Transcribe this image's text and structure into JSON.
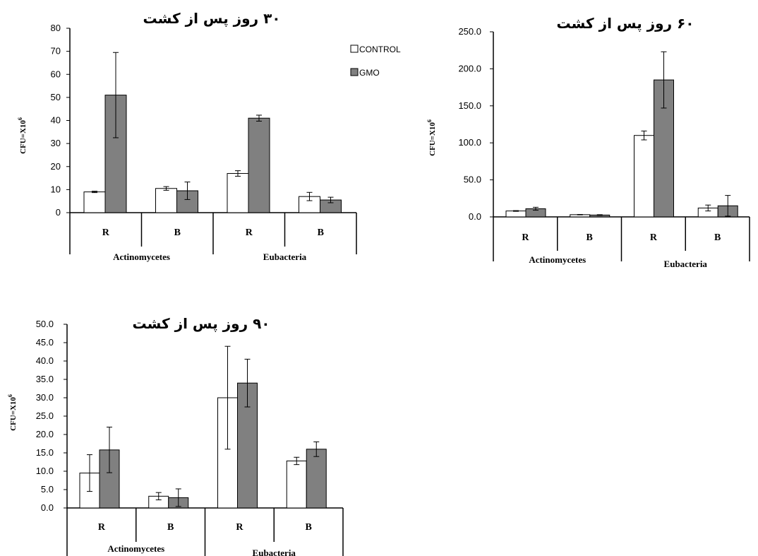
{
  "legend": {
    "control": "CONTROL",
    "gmo": "GMO"
  },
  "colors": {
    "control": "#ffffff",
    "gmo": "#808080",
    "axis": "#000000"
  },
  "chart_data": [
    {
      "type": "bar",
      "title": "۳۰ روز پس از کشت",
      "ylabel": "CFU=X10",
      "ylabel_sup": "6",
      "ylim": [
        0,
        80
      ],
      "yticks": [
        "0",
        "10",
        "20",
        "30",
        "40",
        "50",
        "60",
        "70",
        "80"
      ],
      "categories": [
        "R",
        "B",
        "R",
        "B"
      ],
      "groups": [
        "Actinomycetes",
        "Eubacteria"
      ],
      "series": [
        {
          "name": "CONTROL",
          "values": [
            9,
            10.5,
            17,
            7
          ],
          "errors": [
            0.3,
            0.8,
            1.2,
            1.8
          ]
        },
        {
          "name": "GMO",
          "values": [
            51,
            9.5,
            41,
            5.5
          ],
          "errors": [
            18.5,
            3.8,
            1.3,
            1.2
          ]
        }
      ]
    },
    {
      "type": "bar",
      "title": "۶۰ روز پس از کشت",
      "ylabel": "CFU=X10",
      "ylabel_sup": "6",
      "ylim": [
        0,
        250
      ],
      "yticks": [
        "0.0",
        "50.0",
        "100.0",
        "150.0",
        "200.0",
        "250.0"
      ],
      "categories": [
        "R",
        "B",
        "R",
        "B"
      ],
      "groups": [
        "Actinomycetes",
        "Eubacteria"
      ],
      "series": [
        {
          "name": "CONTROL",
          "values": [
            8,
            3,
            110,
            12
          ],
          "errors": [
            0.5,
            0.3,
            6,
            4
          ]
        },
        {
          "name": "GMO",
          "values": [
            11,
            2.5,
            185,
            15
          ],
          "errors": [
            2,
            0.5,
            38,
            14
          ]
        }
      ]
    },
    {
      "type": "bar",
      "title": "۹۰ روز پس از کشت",
      "ylabel": "CFU=X10",
      "ylabel_sup": "6",
      "ylim": [
        0,
        50
      ],
      "yticks": [
        "0.0",
        "5.0",
        "10.0",
        "15.0",
        "20.0",
        "25.0",
        "30.0",
        "35.0",
        "40.0",
        "45.0",
        "50.0"
      ],
      "categories": [
        "R",
        "B",
        "R",
        "B"
      ],
      "groups": [
        "Actinomycetes",
        "Eubacteria"
      ],
      "series": [
        {
          "name": "CONTROL",
          "values": [
            9.5,
            3.2,
            30,
            12.8
          ],
          "errors": [
            5,
            1,
            14,
            1
          ]
        },
        {
          "name": "GMO",
          "values": [
            15.8,
            2.8,
            34,
            16
          ],
          "errors": [
            6.2,
            2.4,
            6.5,
            2
          ]
        }
      ]
    }
  ]
}
